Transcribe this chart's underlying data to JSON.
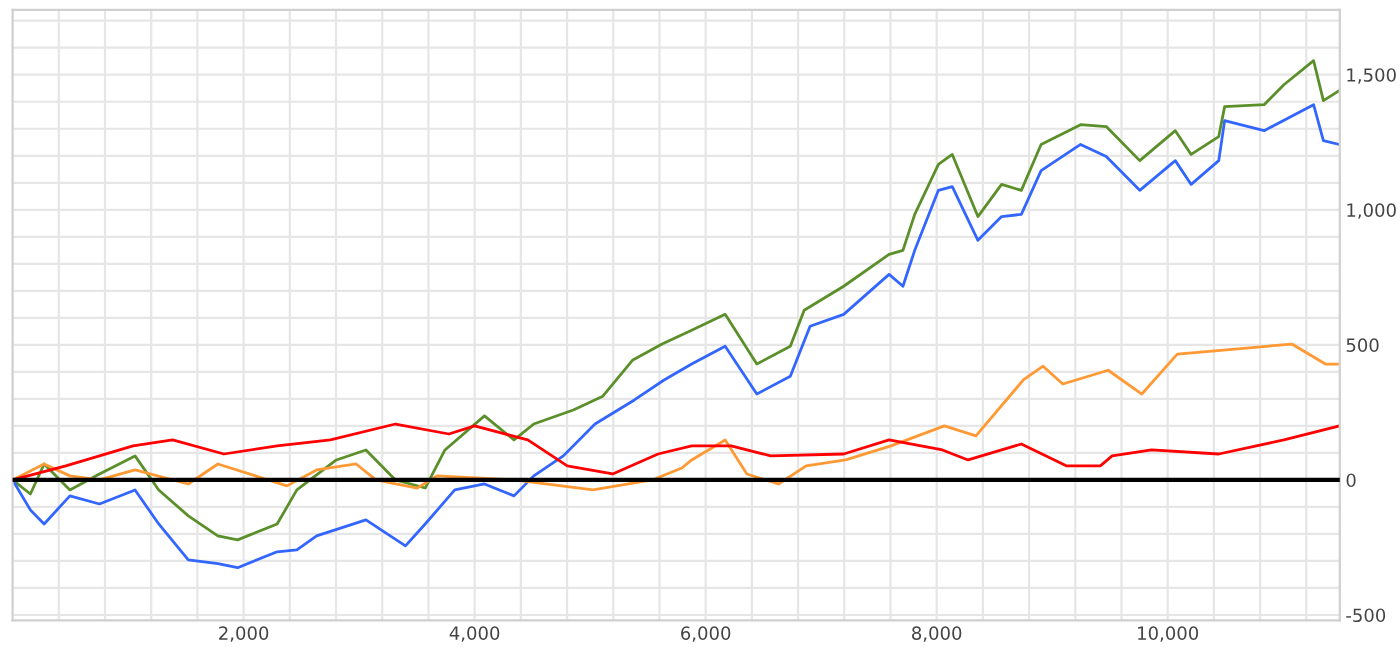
{
  "chart_data": {
    "type": "line",
    "xlim": [
      0,
      11490
    ],
    "ylim": [
      -520,
      1740
    ],
    "xticks": [
      {
        "value": 400,
        "label": null
      },
      {
        "value": 800,
        "label": null
      },
      {
        "value": 1200,
        "label": null
      },
      {
        "value": 1600,
        "label": null
      },
      {
        "value": 2000,
        "label": "2,000"
      },
      {
        "value": 2400,
        "label": null
      },
      {
        "value": 2800,
        "label": null
      },
      {
        "value": 3200,
        "label": null
      },
      {
        "value": 3600,
        "label": null
      },
      {
        "value": 4000,
        "label": "4,000"
      },
      {
        "value": 4400,
        "label": null
      },
      {
        "value": 4800,
        "label": null
      },
      {
        "value": 5200,
        "label": null
      },
      {
        "value": 5600,
        "label": null
      },
      {
        "value": 6000,
        "label": "6,000"
      },
      {
        "value": 6400,
        "label": null
      },
      {
        "value": 6800,
        "label": null
      },
      {
        "value": 7200,
        "label": null
      },
      {
        "value": 7600,
        "label": null
      },
      {
        "value": 8000,
        "label": "8,000"
      },
      {
        "value": 8400,
        "label": null
      },
      {
        "value": 8800,
        "label": null
      },
      {
        "value": 9200,
        "label": null
      },
      {
        "value": 9600,
        "label": null
      },
      {
        "value": 10000,
        "label": "10,000"
      },
      {
        "value": 10400,
        "label": null
      },
      {
        "value": 10800,
        "label": null
      },
      {
        "value": 11200,
        "label": null
      }
    ],
    "yticks": [
      -500,
      {
        "value": -400,
        "label": null
      },
      {
        "value": -300,
        "label": null
      },
      {
        "value": -200,
        "label": null
      },
      {
        "value": -100,
        "label": null
      },
      0,
      {
        "value": 100,
        "label": null
      },
      {
        "value": 200,
        "label": null
      },
      {
        "value": 300,
        "label": null
      },
      {
        "value": 400,
        "label": null
      },
      500,
      {
        "value": 600,
        "label": null
      },
      {
        "value": 700,
        "label": null
      },
      {
        "value": 800,
        "label": null
      },
      {
        "value": 900,
        "label": null
      },
      {
        "value": 1000,
        "label": "1,000"
      },
      {
        "value": 1100,
        "label": null
      },
      {
        "value": 1200,
        "label": null
      },
      {
        "value": 1300,
        "label": null
      },
      {
        "value": 1400,
        "label": null
      },
      {
        "value": 1500,
        "label": "1,500"
      },
      {
        "value": 1600,
        "label": null
      },
      {
        "value": 1700,
        "label": null
      }
    ],
    "grid": true,
    "legend": false,
    "ref_lines": [
      {
        "axis": "y",
        "value": 0,
        "color": "#000000"
      }
    ],
    "series": [
      {
        "color": "#5b8f2a",
        "x": [
          0,
          154,
          273,
          496,
          752,
          1060,
          1265,
          1521,
          1777,
          1948,
          2290,
          2461,
          2803,
          3059,
          3315,
          3572,
          3743,
          4085,
          4341,
          4512,
          4854,
          5110,
          5366,
          5623,
          5879,
          6169,
          6443,
          6733,
          6853,
          7195,
          7588,
          7708,
          7810,
          8015,
          8135,
          8357,
          8562,
          8733,
          8904,
          9246,
          9468,
          9758,
          10066,
          10203,
          10442,
          10493,
          10835,
          11006,
          11263,
          11348,
          11485
        ],
        "values": [
          0,
          -52,
          59,
          -37,
          22,
          89,
          -37,
          -133,
          -207,
          -222,
          -163,
          -37,
          74,
          111,
          0,
          -30,
          111,
          237,
          148,
          207,
          259,
          310,
          443,
          503,
          554,
          613,
          429,
          495,
          628,
          717,
          835,
          850,
          983,
          1168,
          1205,
          975,
          1094,
          1072,
          1242,
          1315,
          1308,
          1182,
          1293,
          1205,
          1271,
          1382,
          1389,
          1463,
          1552,
          1404,
          1441
        ]
      },
      {
        "color": "#3366ff",
        "x": [
          0,
          154,
          273,
          496,
          752,
          1060,
          1265,
          1521,
          1777,
          1948,
          2290,
          2461,
          2632,
          3059,
          3401,
          3572,
          3828,
          4085,
          4341,
          4512,
          4768,
          5042,
          5383,
          5640,
          5879,
          6169,
          6443,
          6733,
          6904,
          7195,
          7588,
          7708,
          7810,
          8015,
          8135,
          8357,
          8562,
          8733,
          8904,
          9246,
          9468,
          9758,
          10066,
          10203,
          10442,
          10493,
          10835,
          11263,
          11348,
          11485
        ],
        "values": [
          0,
          -111,
          -163,
          -59,
          -89,
          -37,
          -163,
          -296,
          -310,
          -325,
          -266,
          -259,
          -207,
          -148,
          -244,
          -163,
          -37,
          -15,
          -59,
          15,
          89,
          207,
          296,
          370,
          429,
          495,
          318,
          384,
          569,
          613,
          761,
          717,
          850,
          1072,
          1086,
          887,
          975,
          983,
          1145,
          1242,
          1197,
          1072,
          1182,
          1094,
          1182,
          1330,
          1293,
          1389,
          1256,
          1242
        ]
      },
      {
        "color": "#ff9933",
        "x": [
          0,
          273,
          496,
          752,
          1060,
          1521,
          1777,
          2375,
          2632,
          2974,
          3145,
          3503,
          3674,
          4341,
          5024,
          5537,
          5794,
          5879,
          6169,
          6357,
          6631,
          6870,
          7212,
          7605,
          8067,
          8340,
          8750,
          8921,
          9092,
          9485,
          9776,
          10083,
          10459,
          11075,
          11365,
          11485
        ],
        "values": [
          0,
          59,
          15,
          0,
          37,
          -15,
          59,
          -22,
          37,
          59,
          0,
          -30,
          15,
          0,
          -37,
          0,
          44,
          74,
          148,
          22,
          -15,
          52,
          74,
          126,
          200,
          163,
          370,
          421,
          355,
          406,
          318,
          466,
          480,
          503,
          429,
          429
        ]
      },
      {
        "color": "#ff0000",
        "x": [
          0,
          461,
          1043,
          1385,
          1829,
          2290,
          2751,
          3315,
          3777,
          3999,
          4460,
          4802,
          5195,
          5588,
          5879,
          6221,
          6563,
          7195,
          7588,
          8050,
          8272,
          8733,
          9126,
          9417,
          9519,
          9861,
          10442,
          11006,
          11485
        ],
        "values": [
          0,
          52,
          126,
          148,
          96,
          126,
          148,
          207,
          170,
          200,
          148,
          52,
          22,
          96,
          126,
          126,
          89,
          96,
          148,
          111,
          74,
          133,
          52,
          52,
          89,
          111,
          96,
          148,
          200
        ]
      }
    ]
  }
}
